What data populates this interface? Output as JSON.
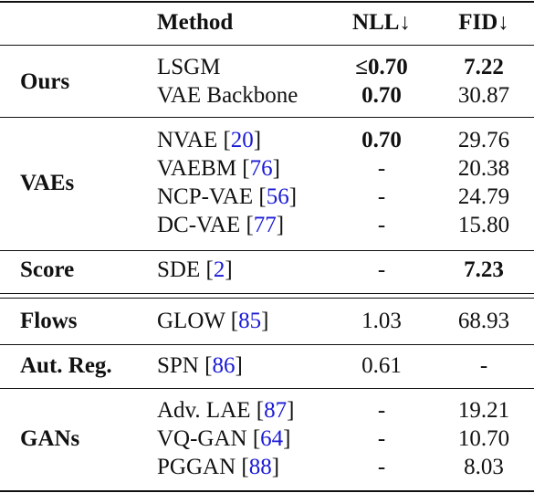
{
  "header": {
    "method": "Method",
    "nll": "NLL↓",
    "fid": "FID↓"
  },
  "groups": [
    {
      "name": "Ours",
      "rows": [
        {
          "method": "LSGM",
          "ref": "",
          "nll": "≤0.70",
          "nll_bold": true,
          "fid": "7.22",
          "fid_bold": true
        },
        {
          "method": "VAE Backbone",
          "ref": "",
          "nll": "0.70",
          "nll_bold": true,
          "fid": "30.87",
          "fid_bold": false
        }
      ]
    },
    {
      "name": "VAEs",
      "rows": [
        {
          "method": "NVAE [",
          "ref": "20",
          "nll": "0.70",
          "nll_bold": true,
          "fid": "29.76",
          "fid_bold": false
        },
        {
          "method": "VAEBM [",
          "ref": "76",
          "nll": "-",
          "nll_bold": false,
          "fid": "20.38",
          "fid_bold": false
        },
        {
          "method": "NCP-VAE [",
          "ref": "56",
          "nll": "-",
          "nll_bold": false,
          "fid": "24.79",
          "fid_bold": false
        },
        {
          "method": "DC-VAE [",
          "ref": "77",
          "nll": "-",
          "nll_bold": false,
          "fid": "15.80",
          "fid_bold": false
        }
      ]
    },
    {
      "name": "Score",
      "rows": [
        {
          "method": "SDE [",
          "ref": "2",
          "nll": "-",
          "nll_bold": false,
          "fid": "7.23",
          "fid_bold": true
        }
      ]
    },
    {
      "name": "Flows",
      "rows": [
        {
          "method": "GLOW [",
          "ref": "85",
          "nll": "1.03",
          "nll_bold": false,
          "fid": "68.93",
          "fid_bold": false
        }
      ]
    },
    {
      "name": "Aut. Reg.",
      "rows": [
        {
          "method": "SPN [",
          "ref": "86",
          "nll": "0.61",
          "nll_bold": false,
          "fid": "-",
          "fid_bold": false
        }
      ]
    },
    {
      "name": "GANs",
      "rows": [
        {
          "method": "Adv. LAE [",
          "ref": "87",
          "nll": "-",
          "nll_bold": false,
          "fid": "19.21",
          "fid_bold": false
        },
        {
          "method": "VQ-GAN [",
          "ref": "64",
          "nll": "-",
          "nll_bold": false,
          "fid": "10.70",
          "fid_bold": false
        },
        {
          "method": "PGGAN [",
          "ref": "88",
          "nll": "-",
          "nll_bold": false,
          "fid": "8.03",
          "fid_bold": false
        }
      ]
    }
  ],
  "ref_close": "]",
  "colors": {
    "text": "#111111",
    "ref_link": "#1a1ad6"
  }
}
